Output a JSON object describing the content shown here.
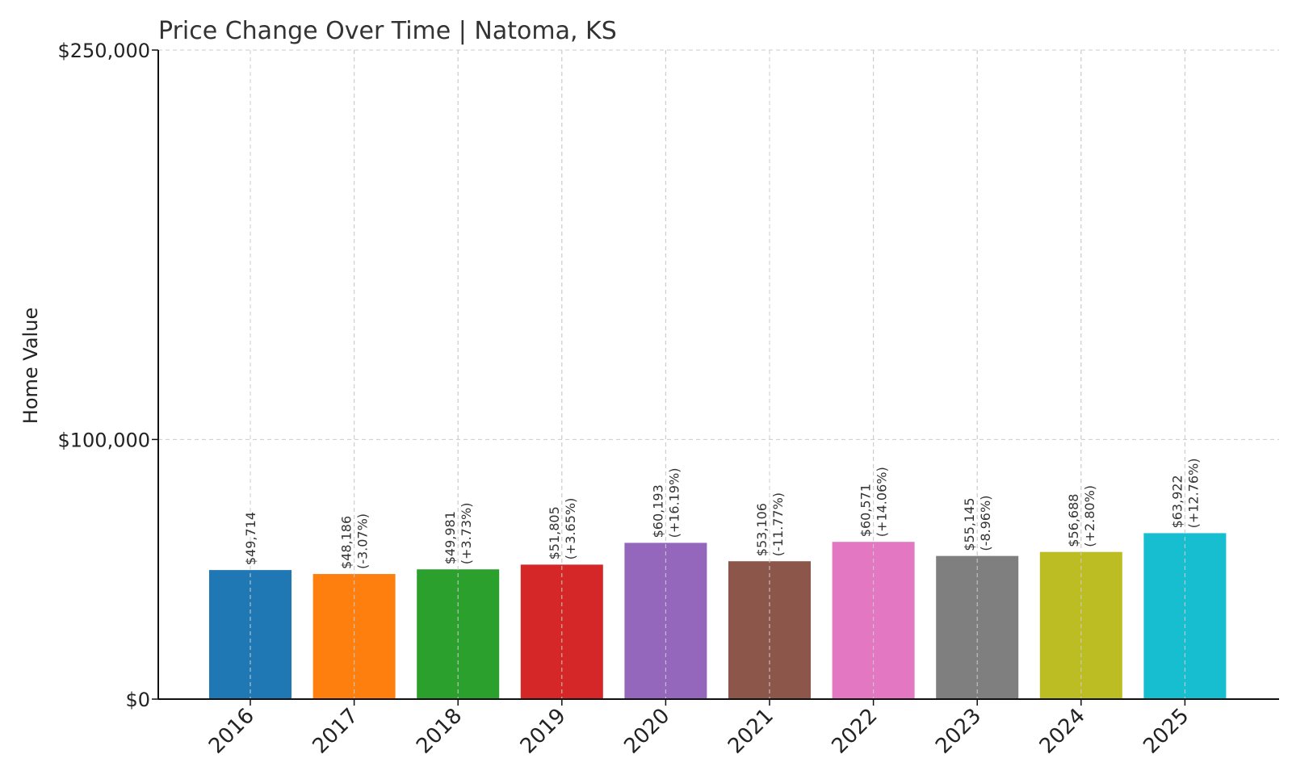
{
  "chart_data": {
    "type": "bar",
    "title": "Price Change Over Time | Natoma, KS",
    "xlabel": "",
    "ylabel": "Home Value",
    "categories": [
      "2016",
      "2017",
      "2018",
      "2019",
      "2020",
      "2021",
      "2022",
      "2023",
      "2024",
      "2025"
    ],
    "values": [
      49714,
      48186,
      49981,
      51805,
      60193,
      53106,
      60571,
      55145,
      56688,
      63922
    ],
    "value_labels": [
      "$49,714",
      "$48,186",
      "$49,981",
      "$51,805",
      "$60,193",
      "$53,106",
      "$60,571",
      "$55,145",
      "$56,688",
      "$63,922"
    ],
    "change_labels": [
      "",
      "(-3.07%)",
      "(+3.73%)",
      "(+3.65%)",
      "(+16.19%)",
      "(-11.77%)",
      "(+14.06%)",
      "(-8.96%)",
      "(+2.80%)",
      "(+12.76%)"
    ],
    "colors": [
      "#1f77b4",
      "#ff7f0e",
      "#2ca02c",
      "#d62728",
      "#9467bd",
      "#8c564b",
      "#e377c2",
      "#7f7f7f",
      "#bcbd22",
      "#17becf"
    ],
    "ylim": [
      0,
      250000
    ],
    "yticks": [
      0,
      100000,
      250000
    ],
    "ytick_labels": [
      "$0",
      "$100,000",
      "$250,000"
    ],
    "grid": true
  }
}
